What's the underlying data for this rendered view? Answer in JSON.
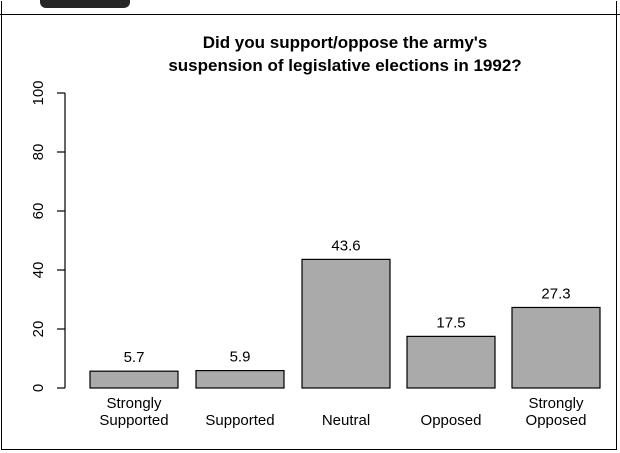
{
  "chart_data": {
    "type": "bar",
    "title_lines": [
      "Did you support/oppose the army's",
      "suspension of legislative elections in 1992?"
    ],
    "categories": [
      [
        "Strongly",
        "Supported"
      ],
      [
        "Supported"
      ],
      [
        "Neutral"
      ],
      [
        "Opposed"
      ],
      [
        "Strongly",
        "Opposed"
      ]
    ],
    "values": [
      5.7,
      5.9,
      43.6,
      17.5,
      27.3
    ],
    "value_labels": [
      "5.7",
      "5.9",
      "43.6",
      "17.5",
      "27.3"
    ],
    "y_ticks": [
      0,
      20,
      40,
      60,
      80,
      100
    ],
    "y_tick_labels": [
      "0",
      "20",
      "40",
      "60",
      "80",
      "100"
    ],
    "ylim": [
      0,
      100
    ],
    "xlabel": "",
    "ylabel": "",
    "grid": false,
    "legend": "none",
    "bar_color": "#aaaaaa",
    "bar_edge_color": "#000000"
  }
}
